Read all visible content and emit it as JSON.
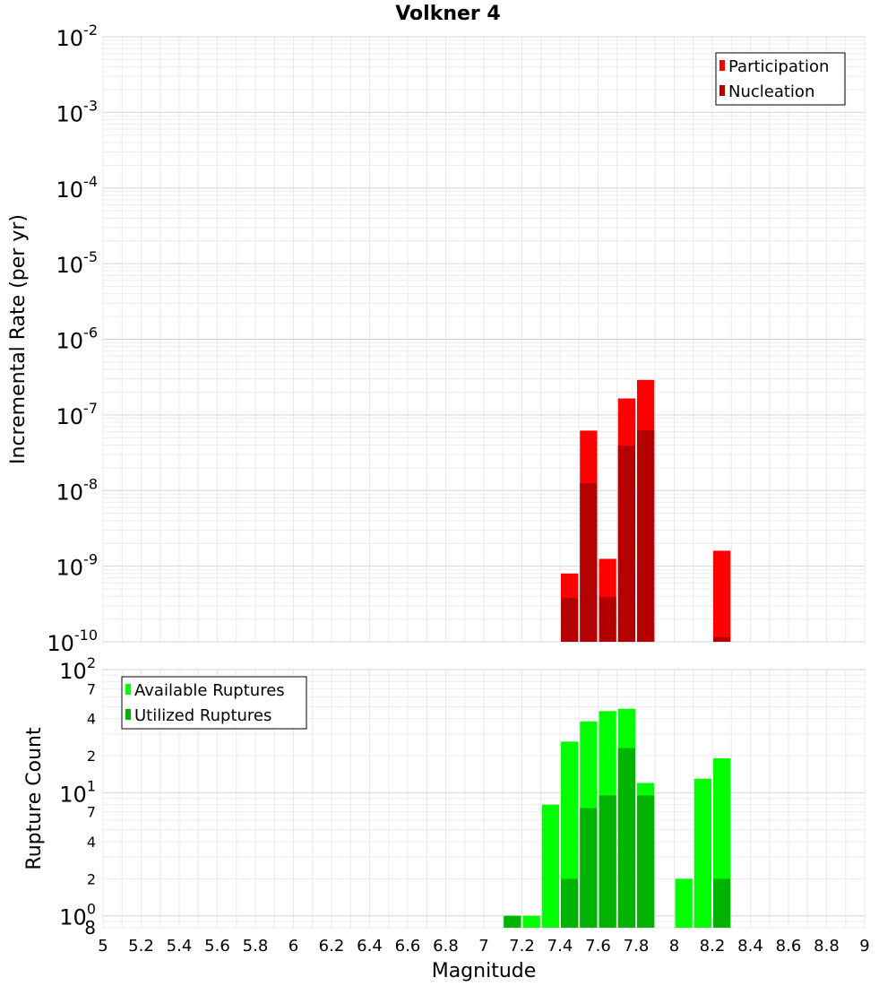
{
  "chart_data": [
    {
      "type": "bar",
      "title": "Volkner 4",
      "xlabel": "",
      "ylabel": "Incremental Rate (per yr)",
      "yscale": "log",
      "ylim": [
        1e-10,
        0.01
      ],
      "xlim": [
        5,
        9
      ],
      "y_tick_labels": [
        {
          "base": "10",
          "exp": "-10"
        },
        {
          "base": "10",
          "exp": "-9"
        },
        {
          "base": "10",
          "exp": "-8"
        },
        {
          "base": "10",
          "exp": "-7"
        },
        {
          "base": "10",
          "exp": "-6"
        },
        {
          "base": "10",
          "exp": "-5"
        },
        {
          "base": "10",
          "exp": "-4"
        },
        {
          "base": "10",
          "exp": "-3"
        },
        {
          "base": "10",
          "exp": "-2"
        }
      ],
      "legend": "top-right",
      "series": [
        {
          "name": "Participation",
          "color": "#ff0000",
          "x": [
            7.45,
            7.55,
            7.65,
            7.75,
            7.85,
            8.25
          ],
          "values": [
            8e-10,
            6.2e-08,
            1.25e-09,
            1.65e-07,
            2.9e-07,
            1.6e-09
          ]
        },
        {
          "name": "Nucleation",
          "color": "#b30000",
          "x": [
            7.45,
            7.55,
            7.65,
            7.75,
            7.85,
            8.25
          ],
          "values": [
            3.8e-10,
            1.25e-08,
            3.9e-10,
            3.9e-08,
            6.3e-08,
            1.15e-10
          ]
        }
      ]
    },
    {
      "type": "bar",
      "title": "",
      "xlabel": "Magnitude",
      "ylabel": "Rupture Count",
      "yscale": "log",
      "ylim": [
        0.8,
        100
      ],
      "xlim": [
        5,
        9
      ],
      "x_ticks": [
        "5",
        "5.2",
        "5.4",
        "5.6",
        "5.8",
        "6",
        "6.2",
        "6.4",
        "6.6",
        "6.8",
        "7",
        "7.2",
        "7.4",
        "7.6",
        "7.8",
        "8",
        "8.2",
        "8.4",
        "8.6",
        "8.8",
        "9"
      ],
      "y_major_labels": [
        {
          "base": "10",
          "exp": "0"
        },
        {
          "base": "10",
          "exp": "1"
        },
        {
          "base": "10",
          "exp": "2"
        }
      ],
      "y_minor_labels": [
        "8",
        "2",
        "4",
        "7",
        "2",
        "4",
        "7"
      ],
      "legend": "top-left",
      "series": [
        {
          "name": "Available Ruptures",
          "color": "#00ff00",
          "x": [
            7.15,
            7.25,
            7.35,
            7.45,
            7.55,
            7.65,
            7.75,
            7.85,
            8.05,
            8.15,
            8.25
          ],
          "values": [
            1,
            1,
            8,
            26,
            38,
            46,
            48,
            12,
            2,
            13,
            19
          ]
        },
        {
          "name": "Utilized Ruptures",
          "color": "#00b300",
          "x": [
            7.15,
            7.45,
            7.55,
            7.65,
            7.75,
            7.85,
            8.25
          ],
          "values": [
            1,
            2,
            7.5,
            9.5,
            23,
            9.5,
            2
          ]
        }
      ]
    }
  ]
}
